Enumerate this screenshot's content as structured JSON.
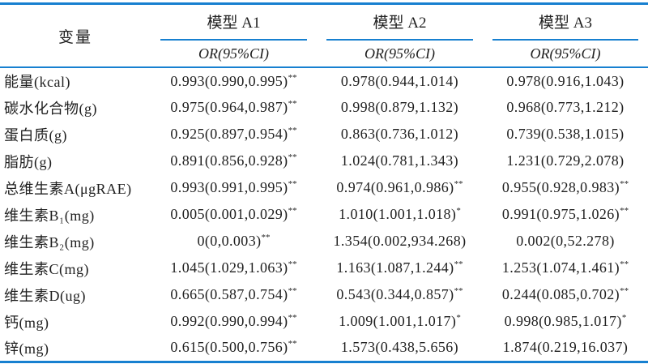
{
  "colors": {
    "rule_blue": "#1780d0",
    "text": "#1f1f1f",
    "background": "#ffffff"
  },
  "table": {
    "variable_header": "变量",
    "or_ci_header": "OR(95%CI)",
    "models": [
      "模型 A1",
      "模型 A2",
      "模型 A3"
    ],
    "rows": [
      {
        "variable": "能量(kcal)",
        "values": [
          "0.993(0.990,0.995)**",
          "0.978(0.944,1.014)",
          "0.978(0.916,1.043)"
        ]
      },
      {
        "variable": "碳水化合物(g)",
        "values": [
          "0.975(0.964,0.987)**",
          "0.998(0.879,1.132)",
          "0.968(0.773,1.212)"
        ]
      },
      {
        "variable": "蛋白质(g)",
        "values": [
          "0.925(0.897,0.954)**",
          "0.863(0.736,1.012)",
          "0.739(0.538,1.015)"
        ]
      },
      {
        "variable": "脂肪(g)",
        "values": [
          "0.891(0.856,0.928)**",
          "1.024(0.781,1.343)",
          "1.231(0.729,2.078)"
        ]
      },
      {
        "variable": "总维生素A(μgRAE)",
        "values": [
          "0.993(0.991,0.995)**",
          "0.974(0.961,0.986)**",
          "0.955(0.928,0.983)**"
        ]
      },
      {
        "variable": "维生素B₁(mg)",
        "values": [
          "0.005(0.001,0.029)**",
          "1.010(1.001,1.018)*",
          "0.991(0.975,1.026)**"
        ]
      },
      {
        "variable": "维生素B₂(mg)",
        "values": [
          "0(0,0.003)**",
          "1.354(0.002,934.268)",
          "0.002(0,52.278)"
        ]
      },
      {
        "variable": "维生素C(mg)",
        "values": [
          "1.045(1.029,1.063)**",
          "1.163(1.087,1.244)**",
          "1.253(1.074,1.461)**"
        ]
      },
      {
        "variable": "维生素D(ug)",
        "values": [
          "0.665(0.587,0.754)**",
          "0.543(0.344,0.857)**",
          "0.244(0.085,0.702)**"
        ]
      },
      {
        "variable": "钙(mg)",
        "values": [
          "0.992(0.990,0.994)**",
          "1.009(1.001,1.017)*",
          "0.998(0.985,1.017)*"
        ]
      },
      {
        "variable": "锌(mg)",
        "values": [
          "0.615(0.500,0.756)**",
          "1.573(0.438,5.656)",
          "1.874(0.219,16.037)"
        ]
      }
    ]
  }
}
